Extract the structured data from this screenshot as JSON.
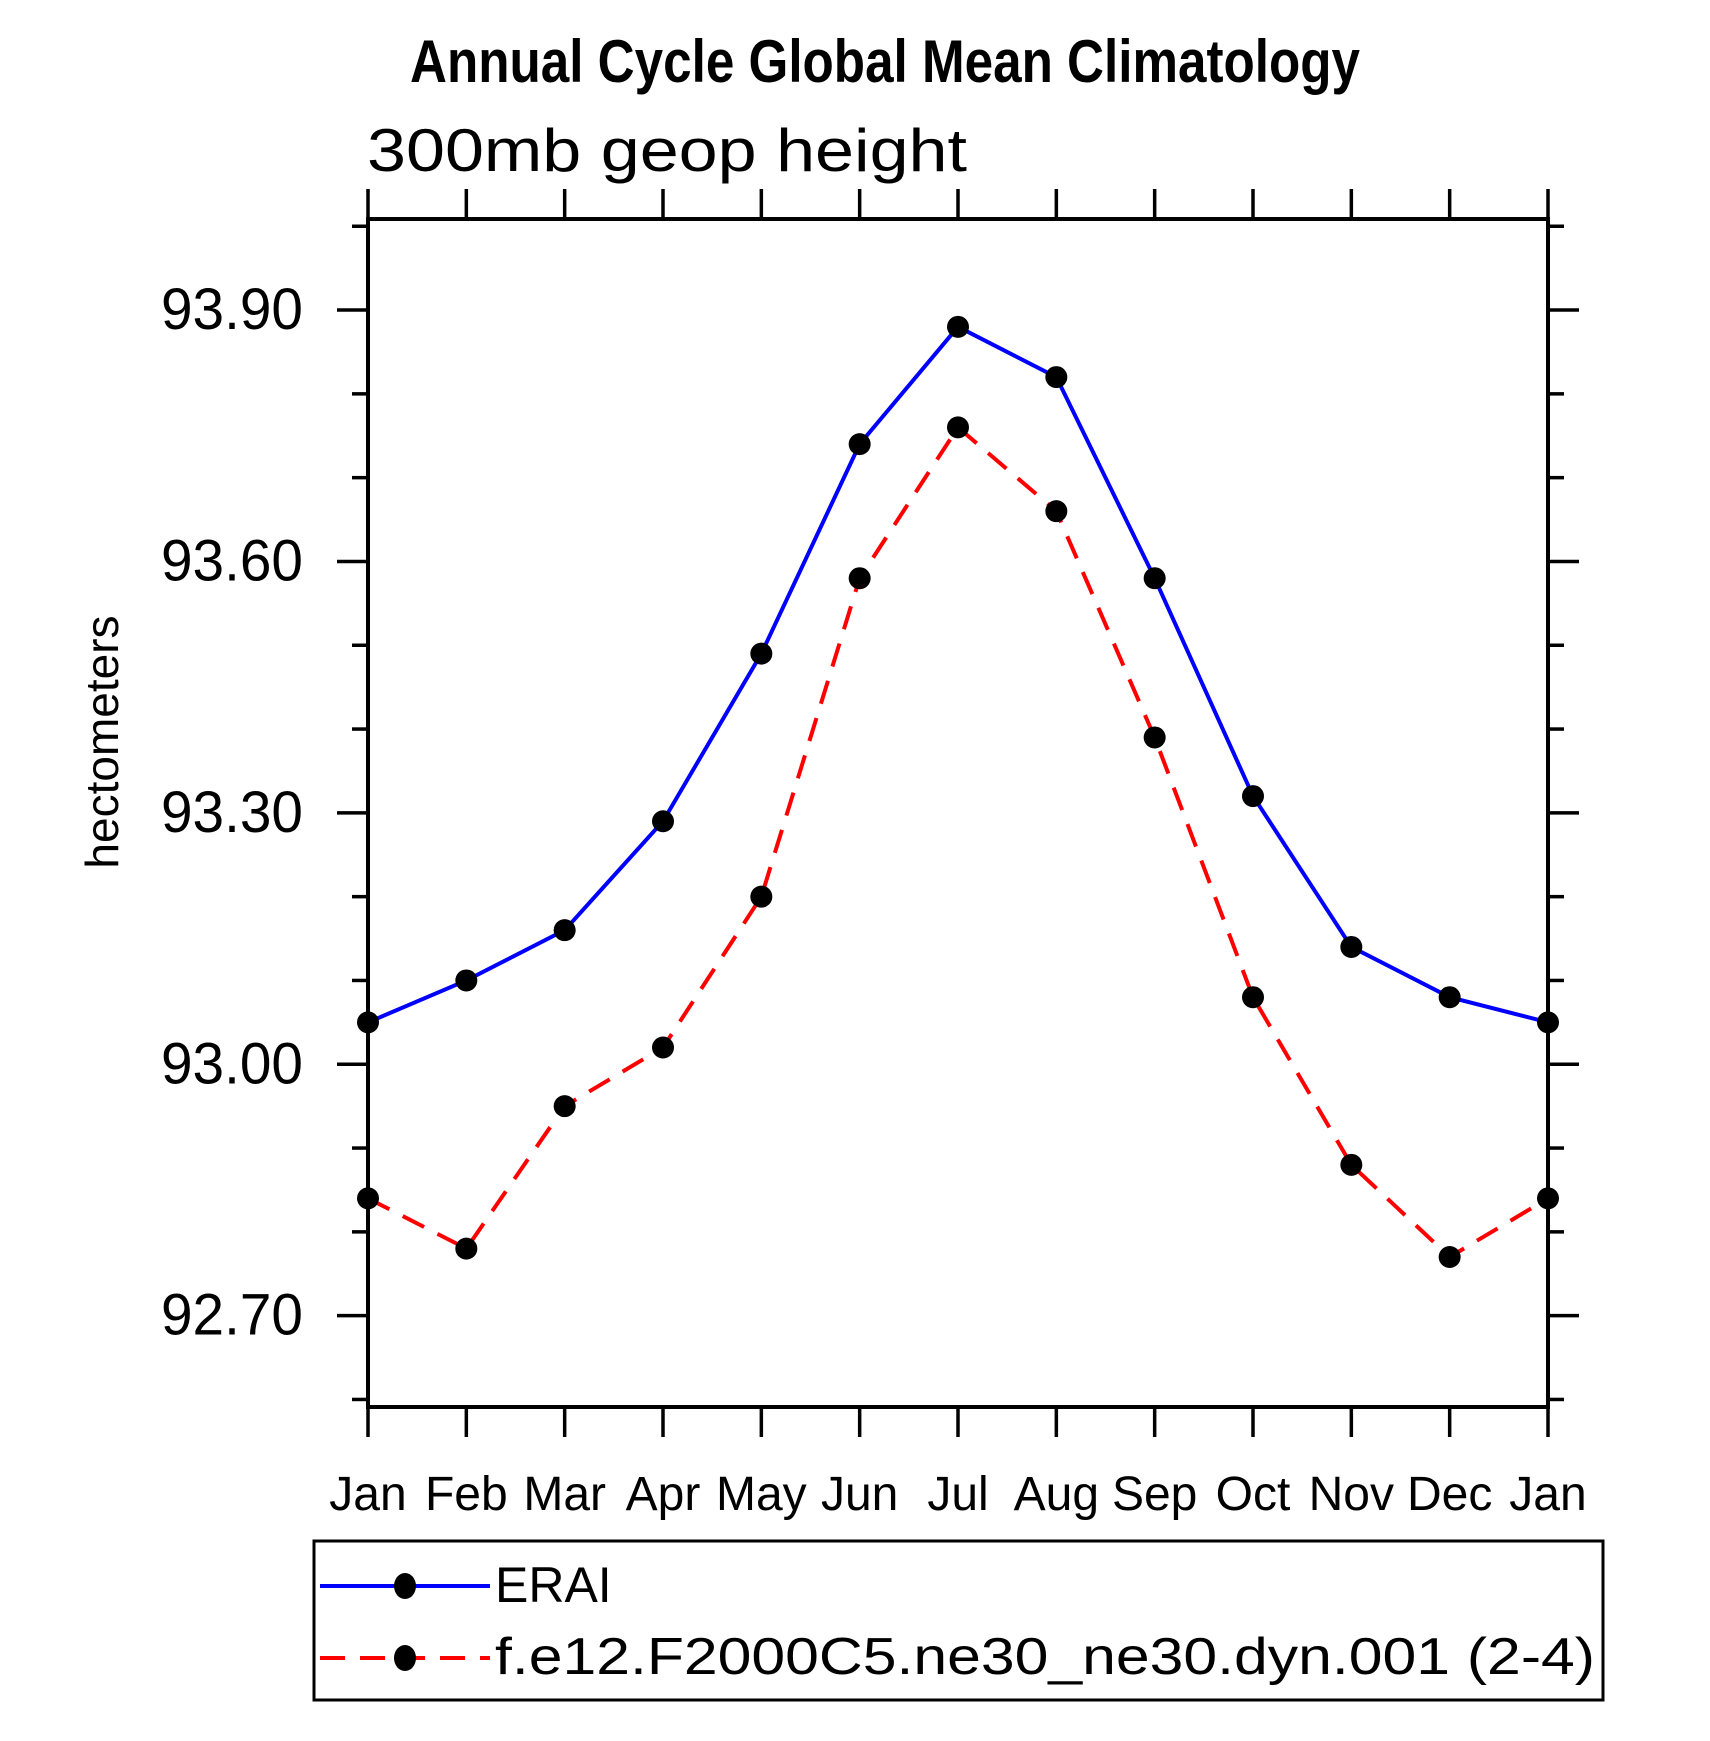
{
  "chart_data": {
    "type": "line",
    "title": "Annual Cycle Global Mean Climatology",
    "subtitle": "300mb geop height",
    "ylabel": "hectometers",
    "xlabel": "",
    "categories": [
      "Jan",
      "Feb",
      "Mar",
      "Apr",
      "May",
      "Jun",
      "Jul",
      "Aug",
      "Sep",
      "Oct",
      "Nov",
      "Dec",
      "Jan"
    ],
    "series": [
      {
        "name": "ERAI",
        "color": "#0000ff",
        "line_style": "solid",
        "marker": "filled-circle",
        "marker_color": "#000000",
        "values": [
          93.05,
          93.1,
          93.16,
          93.29,
          93.49,
          93.74,
          93.88,
          93.82,
          93.58,
          93.32,
          93.14,
          93.08,
          93.05
        ]
      },
      {
        "name": "f.e12.F2000C5.ne30_ne30.dyn.001 (2-4)",
        "color": "#ff0000",
        "line_style": "dashed",
        "marker": "filled-circle",
        "marker_color": "#000000",
        "values": [
          92.84,
          92.78,
          92.95,
          93.02,
          93.2,
          93.58,
          93.76,
          93.66,
          93.39,
          93.08,
          92.88,
          92.77,
          92.84
        ]
      }
    ],
    "ylim": [
      92.59,
      94.01
    ],
    "ytick_major": [
      92.7,
      93.0,
      93.3,
      93.6,
      93.9
    ],
    "ytick_minor_step": 0.1,
    "ytick_label_format": "2-decimals",
    "grid": false,
    "axis_color": "#000000",
    "background": "#ffffff",
    "legend_position": "bottom-left-boxed"
  }
}
